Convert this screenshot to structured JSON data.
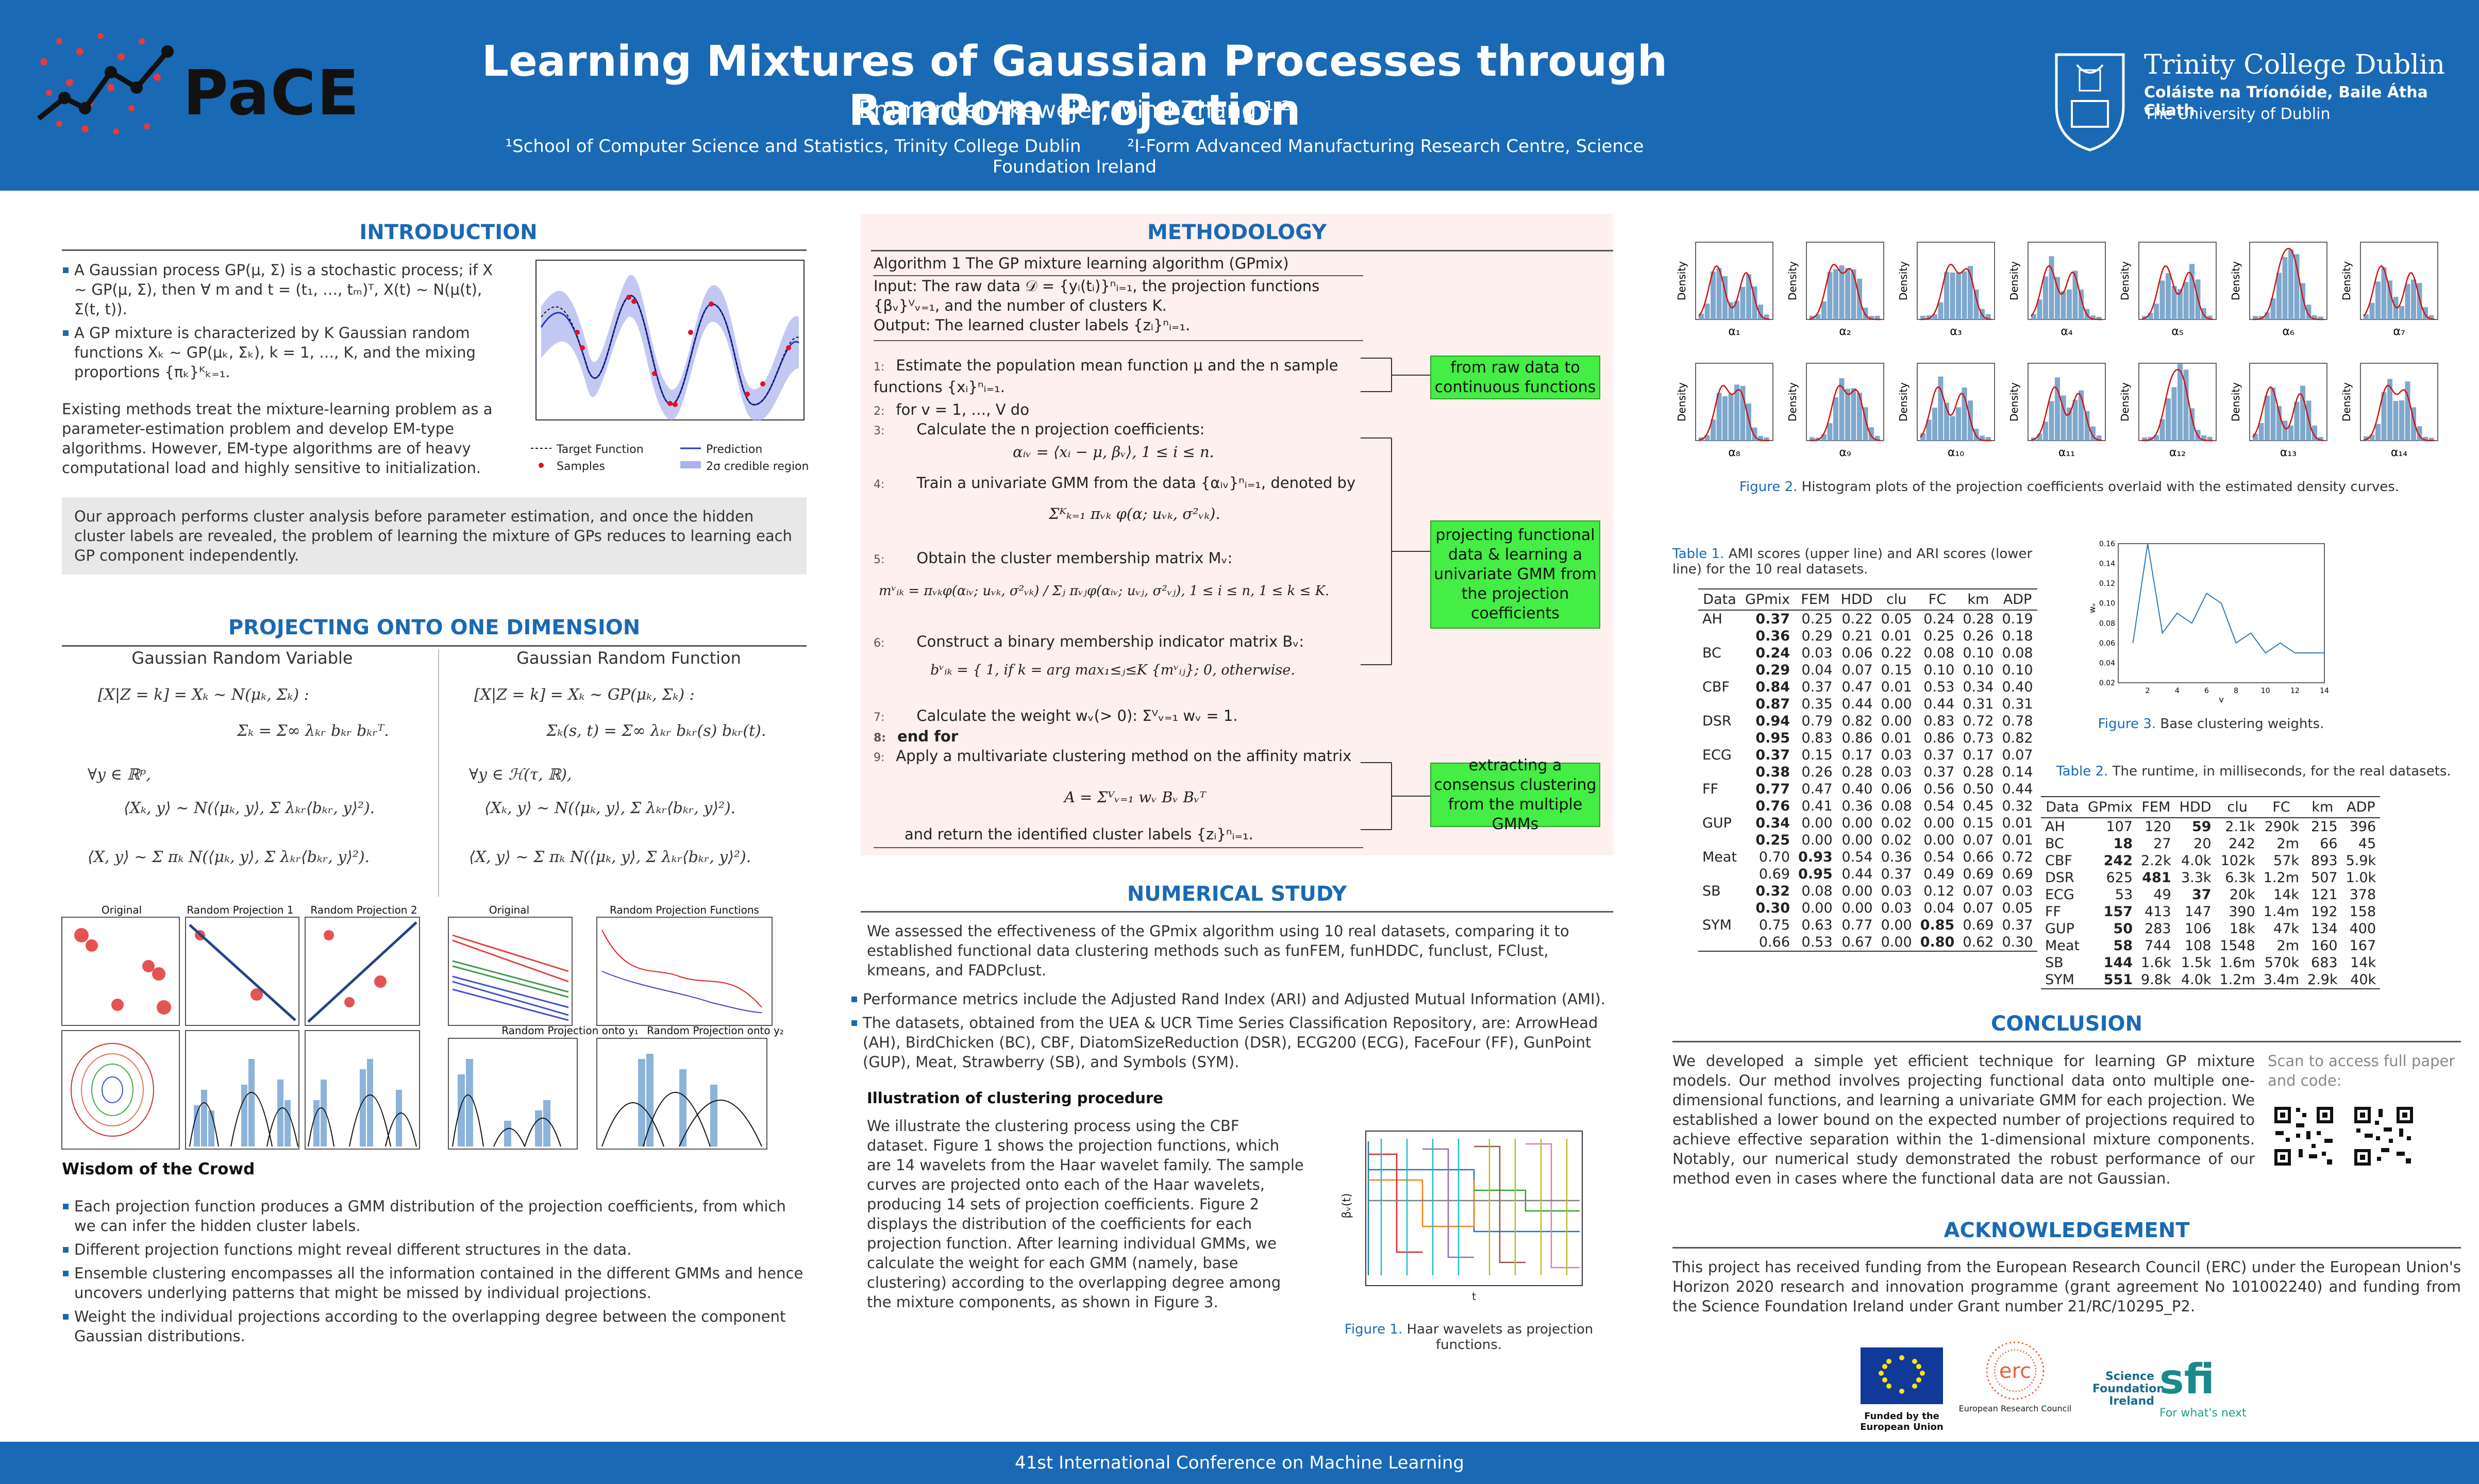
{
  "header": {
    "title": "Learning Mixtures of Gaussian Processes through Random Projection",
    "authors": "Emmanuel Akeweje¹, Mimi Zhang ¹·²",
    "aff1": "¹School of Computer Science and Statistics, Trinity College Dublin",
    "aff2": "²I-Form Advanced Manufacturing Research Centre, Science Foundation Ireland",
    "logo_left": "PaCE",
    "logo_right_name": "Trinity College Dublin",
    "logo_right_irish": "Coláiste na Tríonóide, Baile Átha Cliath",
    "logo_right_uni": "The University of Dublin"
  },
  "intro": {
    "heading": "INTRODUCTION",
    "bullets": [
      "A Gaussian process GP(μ, Σ) is a stochastic process; if X ∼ GP(μ, Σ), then ∀ m and t = (t₁, …, tₘ)ᵀ, X(t) ∼ N(μ(t), Σ(t, t)).",
      "A GP mixture is characterized by K Gaussian random functions Xₖ ∼ GP(μₖ, Σₖ), k = 1, …, K, and the mixing proportions {πₖ}ᴷₖ₌₁."
    ],
    "para": "Existing methods treat the mixture-learning problem as a parameter-estimation problem and develop EM-type algorithms. However, EM-type algorithms are of heavy computational load and highly sensitive to initialization.",
    "approach": "Our approach performs cluster analysis before parameter estimation, and once the hidden cluster labels are revealed, the problem of learning the mixture of GPs reduces to learning each GP component independently.",
    "legend": [
      "Target Function",
      "Prediction",
      "Samples",
      "2σ credible region"
    ]
  },
  "proj": {
    "heading": "PROJECTING ONTO ONE DIMENSION",
    "left_title": "Gaussian Random Variable",
    "right_title": "Gaussian Random Function",
    "l1": "[X|Z = k] = Xₖ ∼ N(μₖ, Σₖ) :",
    "l2": "Σₖ = Σ∞ λₖᵣ bₖᵣ bₖᵣᵀ.",
    "l3": "∀y ∈ ℝᵖ,",
    "l4": "⟨Xₖ, y⟩ ∼ N(⟨μₖ, y⟩, Σ λₖᵣ⟨bₖᵣ, y⟩²).",
    "l5": "⟨X, y⟩ ∼ Σ πₖ N(⟨μₖ, y⟩, Σ λₖᵣ⟨bₖᵣ, y⟩²).",
    "r1": "[X|Z = k] = Xₖ ∼ GP(μₖ, Σₖ) :",
    "r2": "Σₖ(s, t) = Σ∞ λₖᵣ bₖᵣ(s) bₖᵣ(t).",
    "r3": "∀y ∈ ℋ(τ, ℝ),",
    "r4": "⟨Xₖ, y⟩ ∼ N(⟨μₖ, y⟩, Σ λₖᵣ⟨bₖᵣ, y⟩²).",
    "r5": "⟨X, y⟩ ∼ Σ πₖ N(⟨μₖ, y⟩, Σ λₖᵣ⟨bₖᵣ, y⟩²).",
    "panels_l": [
      "Original",
      "Random Projection 1",
      "Random Projection 2"
    ],
    "panels_r": [
      "Original",
      "Random Projection Functions",
      "Random Projection onto y₁",
      "Random Projection onto y₂"
    ]
  },
  "wisdom": {
    "heading": "Wisdom of the Crowd",
    "bullets": [
      "Each projection function produces a GMM distribution of the projection coefficients, from which we can infer the hidden cluster labels.",
      "Different projection functions might reveal different structures in the data.",
      "Ensemble clustering encompasses all the information contained in the different GMMs and hence uncovers underlying patterns that might be missed by individual projections.",
      "Weight the individual projections according to the overlapping degree between the component Gaussian distributions."
    ]
  },
  "method": {
    "heading": "METHODOLOGY",
    "algo_title": "Algorithm 1 The GP mixture learning algorithm (GPmix)",
    "input": "Input: The raw data 𝒟 = {yᵢ(tᵢ)}ⁿᵢ₌₁, the projection functions {βᵥ}ⱽᵥ₌₁, and the number of clusters K.",
    "output": "Output: The learned cluster labels {zᵢ}ⁿᵢ₌₁.",
    "steps": [
      "Estimate the population mean function μ and the n sample functions {xᵢ}ⁿᵢ₌₁.",
      "for v = 1, …, V do",
      "Calculate the n projection coefficients:",
      "αᵢᵥ = ⟨xᵢ − μ, βᵥ⟩,   1 ≤ i ≤ n.",
      "Train a univariate GMM from the data {αᵢᵥ}ⁿᵢ₌₁, denoted by",
      "Σᴷₖ₌₁ πᵥₖ φ(α; uᵥₖ, σ²ᵥₖ).",
      "Obtain the cluster membership matrix Mᵥ:",
      "mᵛᵢₖ = πᵥₖφ(αᵢᵥ; uᵥₖ, σ²ᵥₖ) / Σⱼ πᵥⱼφ(αᵢᵥ; uᵥⱼ, σ²ᵥⱼ),  1 ≤ i ≤ n,  1 ≤ k ≤ K.",
      "Construct a binary membership indicator matrix Bᵥ:",
      "bᵛᵢₖ = { 1, if k = arg max₁≤ⱼ≤K {mᵛᵢⱼ};  0, otherwise.",
      "Calculate the weight wᵥ(> 0): Σⱽᵥ₌₁ wᵥ = 1.",
      "end for",
      "Apply a multivariate clustering method on the affinity matrix",
      "A = Σⱽᵥ₌₁ wᵥ Bᵥ Bᵥᵀ",
      "and return the identified cluster labels {zᵢ}ⁿᵢ₌₁."
    ],
    "notes": [
      "from raw data to continuous functions",
      "projecting functional data & learning a univariate GMM from the projection coefficients",
      "extracting a consensus clustering from the multiple GMMs"
    ]
  },
  "study": {
    "heading": "NUMERICAL STUDY",
    "para": "We assessed the effectiveness of the GPmix algorithm using 10 real datasets, comparing it to established functional data clustering methods such as funFEM, funHDDC, funclust, FClust, kmeans, and FADPclust.",
    "bullets": [
      "Performance metrics include the Adjusted Rand Index (ARI) and Adjusted Mutual Information (AMI).",
      "The datasets, obtained from the UEA & UCR Time Series Classification Repository, are: ArrowHead (AH), BirdChicken (BC), CBF, DiatomSizeReduction (DSR), ECG200 (ECG), FaceFour (FF), GunPoint (GUP), Meat, Strawberry (SB), and Symbols (SYM)."
    ],
    "illus_heading": "Illustration of clustering procedure",
    "illus": "We illustrate the clustering process using the CBF dataset. Figure 1 shows the projection functions, which are 14 wavelets from the Haar wavelet family. The sample curves are projected onto each of the Haar wavelets, producing 14 sets of projection coefficients. Figure 2 displays the distribution of the coefficients for each projection function. After learning individual GMMs, we calculate the weight for each GMM (namely, base clustering) according to the overlapping degree among the mixture components, as shown in Figure 3.",
    "fig1_lbl": "Figure 1.",
    "fig1_cap": "Haar wavelets as projection functions."
  },
  "fig2": {
    "lbl": "Figure 2.",
    "cap": "Histogram plots of the projection coefficients overlaid with the estimated density curves.",
    "ylabel": "Density",
    "alphas": [
      "α₁",
      "α₂",
      "α₃",
      "α₄",
      "α₅",
      "α₆",
      "α₇",
      "α₈",
      "α₉",
      "α₁₀",
      "α₁₁",
      "α₁₂",
      "α₁₃",
      "α₁₄"
    ]
  },
  "table1": {
    "lbl": "Table 1.",
    "cap": "AMI scores (upper line) and ARI scores (lower line) for the 10 real datasets.",
    "headers": [
      "Data",
      "GPmix",
      "FEM",
      "HDD",
      "clu",
      "FC",
      "km",
      "ADP"
    ],
    "rows": [
      [
        "AH",
        "0.37",
        "0.25",
        "0.22",
        "0.05",
        "0.24",
        "0.28",
        "0.19"
      ],
      [
        "",
        "0.36",
        "0.29",
        "0.21",
        "0.01",
        "0.25",
        "0.26",
        "0.18"
      ],
      [
        "BC",
        "0.24",
        "0.03",
        "0.06",
        "0.22",
        "0.08",
        "0.10",
        "0.08"
      ],
      [
        "",
        "0.29",
        "0.04",
        "0.07",
        "0.15",
        "0.10",
        "0.10",
        "0.10"
      ],
      [
        "CBF",
        "0.84",
        "0.37",
        "0.47",
        "0.01",
        "0.53",
        "0.34",
        "0.40"
      ],
      [
        "",
        "0.87",
        "0.35",
        "0.44",
        "0.00",
        "0.44",
        "0.31",
        "0.31"
      ],
      [
        "DSR",
        "0.94",
        "0.79",
        "0.82",
        "0.00",
        "0.83",
        "0.72",
        "0.78"
      ],
      [
        "",
        "0.95",
        "0.83",
        "0.86",
        "0.01",
        "0.86",
        "0.73",
        "0.82"
      ],
      [
        "ECG",
        "0.37",
        "0.15",
        "0.17",
        "0.03",
        "0.37",
        "0.17",
        "0.07"
      ],
      [
        "",
        "0.38",
        "0.26",
        "0.28",
        "0.03",
        "0.37",
        "0.28",
        "0.14"
      ],
      [
        "FF",
        "0.77",
        "0.47",
        "0.40",
        "0.06",
        "0.56",
        "0.50",
        "0.44"
      ],
      [
        "",
        "0.76",
        "0.41",
        "0.36",
        "0.08",
        "0.54",
        "0.45",
        "0.32"
      ],
      [
        "GUP",
        "0.34",
        "0.00",
        "0.00",
        "0.02",
        "0.00",
        "0.15",
        "0.01"
      ],
      [
        "",
        "0.25",
        "0.00",
        "0.00",
        "0.02",
        "0.00",
        "0.07",
        "0.01"
      ],
      [
        "Meat",
        "0.70",
        "0.93",
        "0.54",
        "0.36",
        "0.54",
        "0.66",
        "0.72"
      ],
      [
        "",
        "0.69",
        "0.95",
        "0.44",
        "0.37",
        "0.49",
        "0.69",
        "0.69"
      ],
      [
        "SB",
        "0.32",
        "0.08",
        "0.00",
        "0.03",
        "0.12",
        "0.07",
        "0.03"
      ],
      [
        "",
        "0.30",
        "0.00",
        "0.00",
        "0.03",
        "0.04",
        "0.07",
        "0.05"
      ],
      [
        "SYM",
        "0.75",
        "0.63",
        "0.77",
        "0.00",
        "0.85",
        "0.69",
        "0.37"
      ],
      [
        "",
        "0.66",
        "0.53",
        "0.67",
        "0.00",
        "0.80",
        "0.62",
        "0.30"
      ]
    ],
    "bold": [
      [
        0,
        1
      ],
      [
        1,
        1
      ],
      [
        2,
        1
      ],
      [
        3,
        1
      ],
      [
        4,
        1
      ],
      [
        5,
        1
      ],
      [
        6,
        1
      ],
      [
        7,
        1
      ],
      [
        8,
        1
      ],
      [
        9,
        1
      ],
      [
        10,
        1
      ],
      [
        11,
        1
      ],
      [
        12,
        1
      ],
      [
        13,
        1
      ],
      [
        14,
        2
      ],
      [
        15,
        2
      ],
      [
        16,
        1
      ],
      [
        17,
        1
      ],
      [
        18,
        5
      ],
      [
        19,
        5
      ]
    ]
  },
  "fig3": {
    "lbl": "Figure 3.",
    "cap": "Base clustering weights.",
    "ylabel": "wᵥ",
    "xlabel": "v"
  },
  "chart_data": {
    "type": "line",
    "x": [
      1,
      2,
      3,
      4,
      5,
      6,
      7,
      8,
      9,
      10,
      11,
      12,
      13,
      14
    ],
    "values": [
      0.06,
      0.16,
      0.07,
      0.09,
      0.08,
      0.11,
      0.1,
      0.06,
      0.07,
      0.05,
      0.06,
      0.05,
      0.05,
      0.05
    ],
    "ylim": [
      0.02,
      0.16
    ],
    "xlim": [
      0,
      14
    ]
  },
  "table2": {
    "lbl": "Table 2.",
    "cap": "The runtime, in milliseconds, for the real datasets.",
    "headers": [
      "Data",
      "GPmix",
      "FEM",
      "HDD",
      "clu",
      "FC",
      "km",
      "ADP"
    ],
    "rows": [
      [
        "AH",
        "107",
        "120",
        "59",
        "2.1k",
        "290k",
        "215",
        "396"
      ],
      [
        "BC",
        "18",
        "27",
        "20",
        "242",
        "2m",
        "66",
        "45"
      ],
      [
        "CBF",
        "242",
        "2.2k",
        "4.0k",
        "102k",
        "57k",
        "893",
        "5.9k"
      ],
      [
        "DSR",
        "625",
        "481",
        "3.3k",
        "6.3k",
        "1.2m",
        "507",
        "1.0k"
      ],
      [
        "ECG",
        "53",
        "49",
        "37",
        "20k",
        "14k",
        "121",
        "378"
      ],
      [
        "FF",
        "157",
        "413",
        "147",
        "390",
        "1.4m",
        "192",
        "158"
      ],
      [
        "GUP",
        "50",
        "283",
        "106",
        "18k",
        "47k",
        "134",
        "400"
      ],
      [
        "Meat",
        "58",
        "744",
        "108",
        "1548",
        "2m",
        "160",
        "167"
      ],
      [
        "SB",
        "144",
        "1.6k",
        "1.5k",
        "1.6m",
        "570k",
        "683",
        "14k"
      ],
      [
        "SYM",
        "551",
        "9.8k",
        "4.0k",
        "1.2m",
        "3.4m",
        "2.9k",
        "40k"
      ]
    ],
    "bold": [
      [
        0,
        3
      ],
      [
        1,
        1
      ],
      [
        2,
        1
      ],
      [
        3,
        2
      ],
      [
        4,
        3
      ],
      [
        5,
        1
      ],
      [
        6,
        1
      ],
      [
        7,
        1
      ],
      [
        8,
        1
      ],
      [
        9,
        1
      ]
    ]
  },
  "conclusion": {
    "heading": "CONCLUSION",
    "para": "We developed a simple yet efficient technique for learning GP mixture models. Our method involves projecting functional data onto multiple one-dimensional functions, and learning a univariate GMM for each projection. We established a lower bound on the expected number of projections required to achieve effective separation within the 1-dimensional mixture components. Notably, our numerical study demonstrated the robust performance of our method even in cases where the functional data are not Gaussian.",
    "scan": "Scan to access full paper and code:"
  },
  "ack": {
    "heading": "ACKNOWLEDGEMENT",
    "para": "This project has received funding from the European Research Council (ERC) under the European Union's Horizon 2020 research and innovation programme (grant agreement No 101002240) and funding from the Science Foundation Ireland under Grant number 21/RC/10295_P2.",
    "eu": "Funded by the European Union",
    "erc": "erc",
    "erc_sub": "European Research Council",
    "sfi1": "Science Foundation Ireland",
    "sfi2": "sfi",
    "sfi3": "For what's next"
  },
  "footer": "41st International Conference on Machine Learning",
  "colors": {
    "brand": "#1a69b5",
    "green": "#44ee44"
  }
}
